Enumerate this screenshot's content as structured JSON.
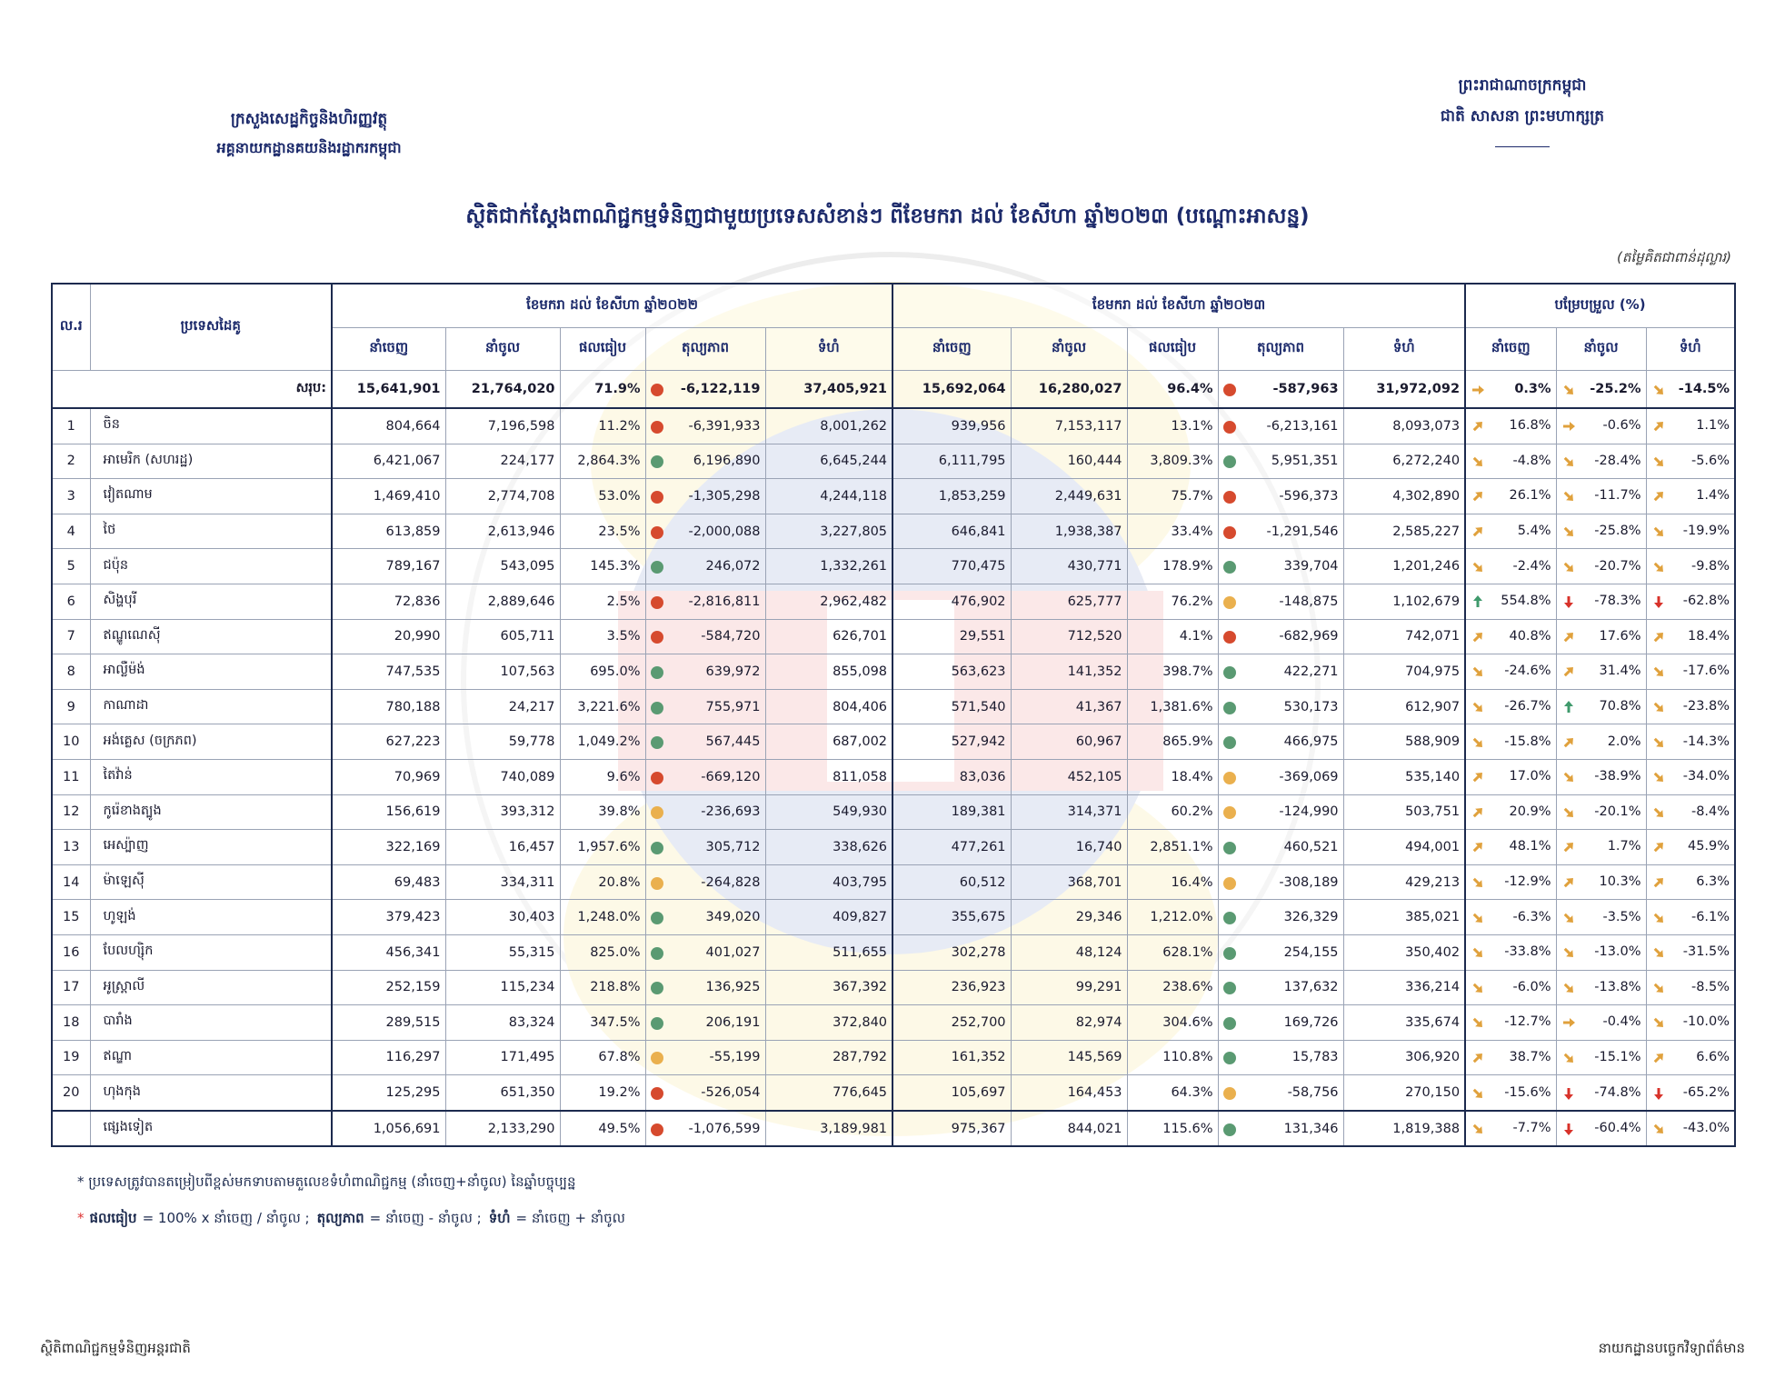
{
  "header": {
    "ministry": "ក្រសួងសេដ្ឋកិច្ចនិងហិរញ្ញវត្ថុ",
    "department": "អគ្គនាយកដ្ឋានគយនិងរដ្ឋាករកម្ពុជា",
    "kingdom": "ព្រះរាជាណាចក្រកម្ពុជា",
    "motto": "ជាតិ សាសនា ព្រះមហាក្សត្រ",
    "title": "ស្ថិតិជាក់ស្តែងពាណិជ្ជកម្មទំនិញជាមួយប្រទេសសំខាន់ៗ ពីខែមករា ដល់ ខែសីហា ឆ្នាំ២០២៣ (បណ្តោះអាសន្ន)",
    "unit": "(តម្លៃគិតជាពាន់ដុល្លារ)"
  },
  "table": {
    "no_header": "ល.រ",
    "country_header": "ប្រទេសដៃគូ",
    "groups": [
      {
        "title": "ខែមករា ដល់ ខែសីហា ឆ្នាំ២០២២",
        "columns": [
          "នាំចេញ",
          "នាំចូល",
          "ផលធៀប",
          "តុល្យភាព",
          "ទំហំ"
        ]
      },
      {
        "title": "ខែមករា ដល់ ខែសីហា ឆ្នាំ២០២៣",
        "columns": [
          "នាំចេញ",
          "នាំចូល",
          "ផលធៀប",
          "តុល្យភាព",
          "ទំហំ"
        ]
      },
      {
        "title": "បម្រែបម្រួល (%)",
        "columns": [
          "នាំចេញ",
          "នាំចូល",
          "ទំហំ"
        ]
      }
    ],
    "total": {
      "label": "សរុប:",
      "y2022": [
        "15,641,901",
        "21,764,020",
        "71.9%",
        "-6,122,119",
        "37,405,921"
      ],
      "flag2022": "#d64a2e",
      "y2023": [
        "15,692,064",
        "16,280,027",
        "96.4%",
        "-587,963",
        "31,972,092"
      ],
      "flag2023": "#d64a2e",
      "change": [
        "0.3%",
        "-25.2%",
        "-14.5%"
      ]
    },
    "rows": [
      {
        "no": "1",
        "country": "ចិន",
        "y2022": [
          "804,664",
          "7,196,598",
          "11.2%",
          "-6,391,933",
          "8,001,262"
        ],
        "flag2022": "#d64a2e",
        "y2023": [
          "939,956",
          "7,153,117",
          "13.1%",
          "-6,213,161",
          "8,093,073"
        ],
        "flag2023": "#d64a2e",
        "change": [
          "16.8%",
          "-0.6%",
          "1.1%"
        ]
      },
      {
        "no": "2",
        "country": "អាមេរិក (សហរដ្ឋ)",
        "y2022": [
          "6,421,067",
          "224,177",
          "2,864.3%",
          "6,196,890",
          "6,645,244"
        ],
        "flag2022": "#5a9a72",
        "y2023": [
          "6,111,795",
          "160,444",
          "3,809.3%",
          "5,951,351",
          "6,272,240"
        ],
        "flag2023": "#5a9a72",
        "change": [
          "-4.8%",
          "-28.4%",
          "-5.6%"
        ]
      },
      {
        "no": "3",
        "country": "វៀតណាម",
        "y2022": [
          "1,469,410",
          "2,774,708",
          "53.0%",
          "-1,305,298",
          "4,244,118"
        ],
        "flag2022": "#d64a2e",
        "y2023": [
          "1,853,259",
          "2,449,631",
          "75.7%",
          "-596,373",
          "4,302,890"
        ],
        "flag2023": "#d64a2e",
        "change": [
          "26.1%",
          "-11.7%",
          "1.4%"
        ]
      },
      {
        "no": "4",
        "country": "ថៃ",
        "y2022": [
          "613,859",
          "2,613,946",
          "23.5%",
          "-2,000,088",
          "3,227,805"
        ],
        "flag2022": "#d64a2e",
        "y2023": [
          "646,841",
          "1,938,387",
          "33.4%",
          "-1,291,546",
          "2,585,227"
        ],
        "flag2023": "#d64a2e",
        "change": [
          "5.4%",
          "-25.8%",
          "-19.9%"
        ]
      },
      {
        "no": "5",
        "country": "ជប៉ុន",
        "y2022": [
          "789,167",
          "543,095",
          "145.3%",
          "246,072",
          "1,332,261"
        ],
        "flag2022": "#5a9a72",
        "y2023": [
          "770,475",
          "430,771",
          "178.9%",
          "339,704",
          "1,201,246"
        ],
        "flag2023": "#5a9a72",
        "change": [
          "-2.4%",
          "-20.7%",
          "-9.8%"
        ]
      },
      {
        "no": "6",
        "country": "សិង្ហបុរី",
        "y2022": [
          "72,836",
          "2,889,646",
          "2.5%",
          "-2,816,811",
          "2,962,482"
        ],
        "flag2022": "#d64a2e",
        "y2023": [
          "476,902",
          "625,777",
          "76.2%",
          "-148,875",
          "1,102,679"
        ],
        "flag2023": "#eab04e",
        "change": [
          "554.8%",
          "-78.3%",
          "-62.8%"
        ]
      },
      {
        "no": "7",
        "country": "ឥណ្ឌូណេស៊ី",
        "y2022": [
          "20,990",
          "605,711",
          "3.5%",
          "-584,720",
          "626,701"
        ],
        "flag2022": "#d64a2e",
        "y2023": [
          "29,551",
          "712,520",
          "4.1%",
          "-682,969",
          "742,071"
        ],
        "flag2023": "#d64a2e",
        "change": [
          "40.8%",
          "17.6%",
          "18.4%"
        ]
      },
      {
        "no": "8",
        "country": "អាល្លឺម៉ង់",
        "y2022": [
          "747,535",
          "107,563",
          "695.0%",
          "639,972",
          "855,098"
        ],
        "flag2022": "#5a9a72",
        "y2023": [
          "563,623",
          "141,352",
          "398.7%",
          "422,271",
          "704,975"
        ],
        "flag2023": "#5a9a72",
        "change": [
          "-24.6%",
          "31.4%",
          "-17.6%"
        ]
      },
      {
        "no": "9",
        "country": "កាណាដា",
        "y2022": [
          "780,188",
          "24,217",
          "3,221.6%",
          "755,971",
          "804,406"
        ],
        "flag2022": "#5a9a72",
        "y2023": [
          "571,540",
          "41,367",
          "1,381.6%",
          "530,173",
          "612,907"
        ],
        "flag2023": "#5a9a72",
        "change": [
          "-26.7%",
          "70.8%",
          "-23.8%"
        ]
      },
      {
        "no": "10",
        "country": "អង់គ្លេស (ចក្រភព)",
        "y2022": [
          "627,223",
          "59,778",
          "1,049.2%",
          "567,445",
          "687,002"
        ],
        "flag2022": "#5a9a72",
        "y2023": [
          "527,942",
          "60,967",
          "865.9%",
          "466,975",
          "588,909"
        ],
        "flag2023": "#5a9a72",
        "change": [
          "-15.8%",
          "2.0%",
          "-14.3%"
        ]
      },
      {
        "no": "11",
        "country": "តៃវ៉ាន់",
        "y2022": [
          "70,969",
          "740,089",
          "9.6%",
          "-669,120",
          "811,058"
        ],
        "flag2022": "#d64a2e",
        "y2023": [
          "83,036",
          "452,105",
          "18.4%",
          "-369,069",
          "535,140"
        ],
        "flag2023": "#eab04e",
        "change": [
          "17.0%",
          "-38.9%",
          "-34.0%"
        ]
      },
      {
        "no": "12",
        "country": "កូរ៉េខាងត្បូង",
        "y2022": [
          "156,619",
          "393,312",
          "39.8%",
          "-236,693",
          "549,930"
        ],
        "flag2022": "#eab04e",
        "y2023": [
          "189,381",
          "314,371",
          "60.2%",
          "-124,990",
          "503,751"
        ],
        "flag2023": "#eab04e",
        "change": [
          "20.9%",
          "-20.1%",
          "-8.4%"
        ]
      },
      {
        "no": "13",
        "country": "អេស្ប៉ាញ",
        "y2022": [
          "322,169",
          "16,457",
          "1,957.6%",
          "305,712",
          "338,626"
        ],
        "flag2022": "#5a9a72",
        "y2023": [
          "477,261",
          "16,740",
          "2,851.1%",
          "460,521",
          "494,001"
        ],
        "flag2023": "#5a9a72",
        "change": [
          "48.1%",
          "1.7%",
          "45.9%"
        ]
      },
      {
        "no": "14",
        "country": "ម៉ាឡេស៊ី",
        "y2022": [
          "69,483",
          "334,311",
          "20.8%",
          "-264,828",
          "403,795"
        ],
        "flag2022": "#eab04e",
        "y2023": [
          "60,512",
          "368,701",
          "16.4%",
          "-308,189",
          "429,213"
        ],
        "flag2023": "#eab04e",
        "change": [
          "-12.9%",
          "10.3%",
          "6.3%"
        ]
      },
      {
        "no": "15",
        "country": "ហូឡង់",
        "y2022": [
          "379,423",
          "30,403",
          "1,248.0%",
          "349,020",
          "409,827"
        ],
        "flag2022": "#5a9a72",
        "y2023": [
          "355,675",
          "29,346",
          "1,212.0%",
          "326,329",
          "385,021"
        ],
        "flag2023": "#5a9a72",
        "change": [
          "-6.3%",
          "-3.5%",
          "-6.1%"
        ]
      },
      {
        "no": "16",
        "country": "បែលហ្ស៊ិក",
        "y2022": [
          "456,341",
          "55,315",
          "825.0%",
          "401,027",
          "511,655"
        ],
        "flag2022": "#5a9a72",
        "y2023": [
          "302,278",
          "48,124",
          "628.1%",
          "254,155",
          "350,402"
        ],
        "flag2023": "#5a9a72",
        "change": [
          "-33.8%",
          "-13.0%",
          "-31.5%"
        ]
      },
      {
        "no": "17",
        "country": "អូស្ត្រាលី",
        "y2022": [
          "252,159",
          "115,234",
          "218.8%",
          "136,925",
          "367,392"
        ],
        "flag2022": "#5a9a72",
        "y2023": [
          "236,923",
          "99,291",
          "238.6%",
          "137,632",
          "336,214"
        ],
        "flag2023": "#5a9a72",
        "change": [
          "-6.0%",
          "-13.8%",
          "-8.5%"
        ]
      },
      {
        "no": "18",
        "country": "បារាំង",
        "y2022": [
          "289,515",
          "83,324",
          "347.5%",
          "206,191",
          "372,840"
        ],
        "flag2022": "#5a9a72",
        "y2023": [
          "252,700",
          "82,974",
          "304.6%",
          "169,726",
          "335,674"
        ],
        "flag2023": "#5a9a72",
        "change": [
          "-12.7%",
          "-0.4%",
          "-10.0%"
        ]
      },
      {
        "no": "19",
        "country": "ឥណ្ឌា",
        "y2022": [
          "116,297",
          "171,495",
          "67.8%",
          "-55,199",
          "287,792"
        ],
        "flag2022": "#eab04e",
        "y2023": [
          "161,352",
          "145,569",
          "110.8%",
          "15,783",
          "306,920"
        ],
        "flag2023": "#5a9a72",
        "change": [
          "38.7%",
          "-15.1%",
          "6.6%"
        ]
      },
      {
        "no": "20",
        "country": "ហុងកុង",
        "y2022": [
          "125,295",
          "651,350",
          "19.2%",
          "-526,054",
          "776,645"
        ],
        "flag2022": "#d64a2e",
        "y2023": [
          "105,697",
          "164,453",
          "64.3%",
          "-58,756",
          "270,150"
        ],
        "flag2023": "#eab04e",
        "change": [
          "-15.6%",
          "-74.8%",
          "-65.2%"
        ]
      },
      {
        "country": "ផ្សេងទៀត",
        "y2022": [
          "1,056,691",
          "2,133,290",
          "49.5%",
          "-1,076,599",
          "3,189,981"
        ],
        "flag2022": "#d64a2e",
        "y2023": [
          "975,367",
          "844,021",
          "115.6%",
          "131,346",
          "1,819,388"
        ],
        "flag2023": "#5a9a72",
        "change": [
          "-7.7%",
          "-60.4%",
          "-43.0%"
        ]
      }
    ]
  },
  "notes": {
    "sorting": "* ប្រទេសត្រូវបានតម្រៀបពីខ្ពស់មកទាបតាមតួលេខទំហំពាណិជ្ជកម្ម (នាំចេញ+នាំចូល) នៃឆ្នាំបច្ចុប្បន្ន",
    "marker": "*",
    "definitions": [
      {
        "term": "ផលធៀប",
        "formula": "= 100% x នាំចេញ / នាំចូល ;"
      },
      {
        "term": "តុល្យភាព",
        "formula": "= នាំចេញ - នាំចូល ;"
      },
      {
        "term": "ទំហំ",
        "formula": "= នាំចេញ + នាំចូល"
      }
    ]
  },
  "footer": {
    "left": "ស្ថិតិពាណិជ្ជកម្មទំនិញអន្តរជាតិ",
    "right": "នាយកដ្ឋានបច្ចេកវិទ្យាព័ត៌មាន"
  }
}
